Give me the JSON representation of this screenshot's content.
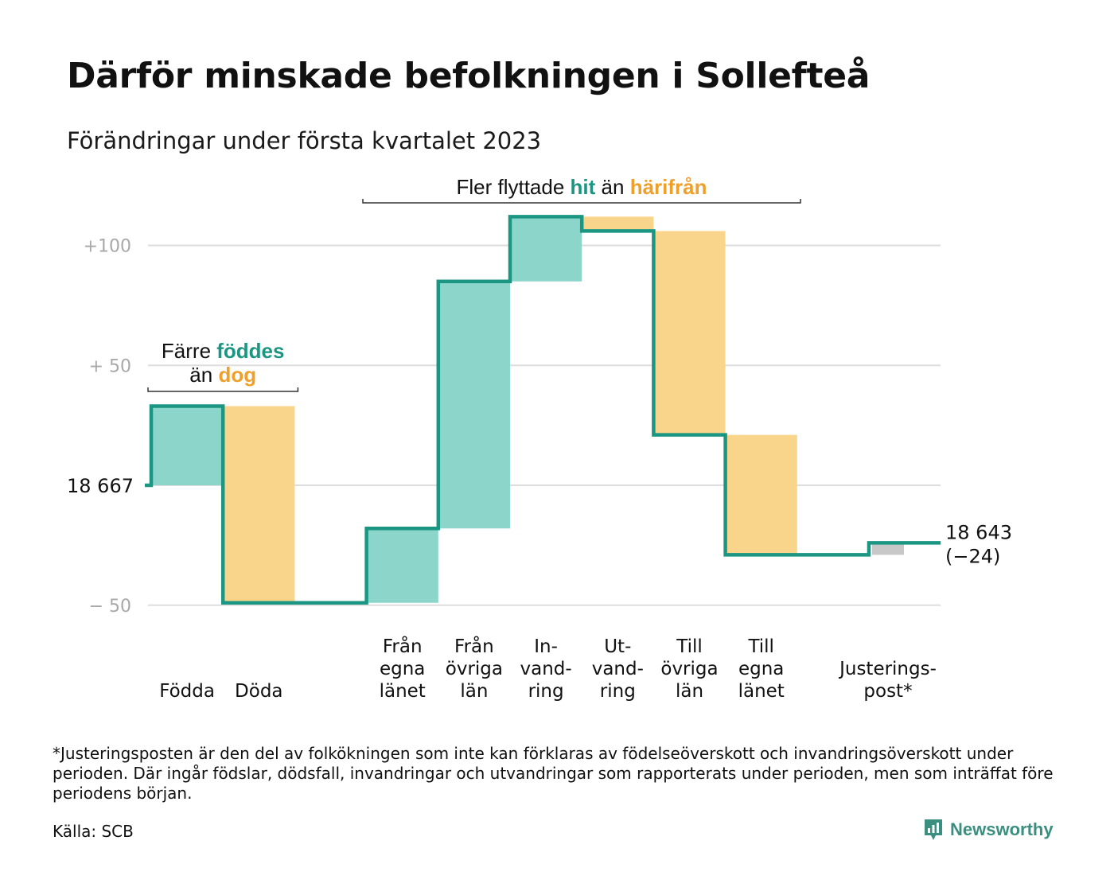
{
  "title": "Därför minskade befolkningen i Sollefteå",
  "subtitle": "Förändringar under första kvartalet 2023",
  "chart_data": {
    "type": "waterfall",
    "start_label": "18 667",
    "end_label": "18 643",
    "end_change_label": "(−24)",
    "y_ticks": [
      {
        "value": 100,
        "label": "+100"
      },
      {
        "value": 50,
        "label": "+ 50"
      },
      {
        "value": 0,
        "label": ""
      },
      {
        "value": -50,
        "label": "− 50"
      }
    ],
    "ylim": [
      -50,
      112
    ],
    "grid": true,
    "steps": [
      {
        "label_lines": [
          "Födda"
        ],
        "kind": "in",
        "from": 0,
        "to": 33
      },
      {
        "label_lines": [
          "Döda"
        ],
        "kind": "out",
        "from": 33,
        "to": -49
      },
      {
        "label_lines": [],
        "kind": "none",
        "from": -49,
        "to": -49
      },
      {
        "label_lines": [
          "Från",
          "egna",
          "länet"
        ],
        "kind": "in",
        "from": -49,
        "to": -18
      },
      {
        "label_lines": [
          "Från",
          "övriga",
          "län"
        ],
        "kind": "in",
        "from": -18,
        "to": 85
      },
      {
        "label_lines": [
          "In-",
          "vand-",
          "ring"
        ],
        "kind": "in",
        "from": 85,
        "to": 112
      },
      {
        "label_lines": [
          "Ut-",
          "vand-",
          "ring"
        ],
        "kind": "out",
        "from": 112,
        "to": 106
      },
      {
        "label_lines": [
          "Till",
          "övriga",
          "län"
        ],
        "kind": "out",
        "from": 106,
        "to": 21
      },
      {
        "label_lines": [
          "Till",
          "egna",
          "länet"
        ],
        "kind": "out",
        "from": 21,
        "to": -29
      },
      {
        "label_lines": [],
        "kind": "none",
        "from": -29,
        "to": -29
      },
      {
        "label_lines": [
          "Justerings-",
          "post*"
        ],
        "kind": "adjust",
        "from": -29,
        "to": -24
      }
    ],
    "annotations": [
      {
        "parts": [
          {
            "text": "Färre ",
            "tone": "plain"
          },
          {
            "text": "föddes",
            "tone": "in"
          }
        ],
        "line2": [
          {
            "text": "än ",
            "tone": "plain"
          },
          {
            "text": "dog",
            "tone": "out"
          }
        ],
        "span": [
          0,
          1
        ]
      },
      {
        "parts": [
          {
            "text": "Fler flyttade ",
            "tone": "plain"
          },
          {
            "text": "hit",
            "tone": "in"
          },
          {
            "text": " än ",
            "tone": "plain"
          },
          {
            "text": "härifrån",
            "tone": "out"
          }
        ],
        "span": [
          3,
          6
        ]
      }
    ],
    "colors": {
      "in_fill": "#8cd5cb",
      "out_fill": "#f9d58b",
      "adjust_fill": "#c8c8c8",
      "line": "#1b9683",
      "in_text": "#1b9683",
      "out_text": "#f0a02a",
      "grid": "#dddddd",
      "tick_text": "#a8a8a8"
    }
  },
  "footnote": "*Justeringsposten är den del av folkökningen som inte kan förklaras av födelseöverskott och invandringsöverskott under perioden. Där ingår födslar, dödsfall, invandringar och utvandringar som rapporterats under perioden, men som inträffat före periodens början.",
  "source": "Källa: SCB",
  "logo": {
    "text": "Newsworthy",
    "icon": "newsworthy-logo-icon",
    "color": "#3b8f80"
  }
}
